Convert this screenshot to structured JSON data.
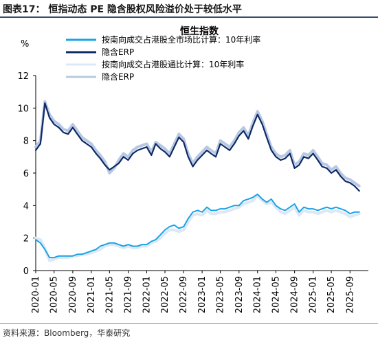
{
  "header": {
    "figure_title": "图表17：  恒指动态 PE 隐含股权风险溢价处于较低水平"
  },
  "footer": {
    "source": "资料来源：Bloomberg，华泰研究"
  },
  "chart_data": {
    "type": "line",
    "title": "恒生指数",
    "ylabel": "%",
    "ylim": [
      0,
      12
    ],
    "yticks": [
      0,
      2,
      4,
      6,
      8,
      10,
      12
    ],
    "xlim": [
      "2020-01-01",
      "2025-12-31"
    ],
    "xticks": [
      "2020-01",
      "2020-05",
      "2020-09",
      "2021-01",
      "2021-05",
      "2021-09",
      "2022-01",
      "2022-05",
      "2022-09",
      "2023-01",
      "2023-05",
      "2023-09",
      "2024-01",
      "2024-05",
      "2024-09",
      "2025-01",
      "2025-05",
      "2025-09"
    ],
    "legend_position": "top-left",
    "series": [
      {
        "name": "按南向成交占港股全市场比计算：10年利率",
        "color": "#1aa3e6",
        "x": [
          "2020-01-01",
          "2020-02-01",
          "2020-03-01",
          "2020-04-01",
          "2020-05-01",
          "2020-06-01",
          "2020-07-01",
          "2020-08-01",
          "2020-09-01",
          "2020-10-01",
          "2020-11-01",
          "2020-12-01",
          "2021-01-01",
          "2021-02-01",
          "2021-03-01",
          "2021-04-01",
          "2021-05-01",
          "2021-06-01",
          "2021-07-01",
          "2021-08-01",
          "2021-09-01",
          "2021-10-01",
          "2021-11-01",
          "2021-12-01",
          "2022-01-01",
          "2022-02-01",
          "2022-03-01",
          "2022-04-01",
          "2022-05-01",
          "2022-06-01",
          "2022-07-01",
          "2022-08-01",
          "2022-09-01",
          "2022-10-01",
          "2022-11-01",
          "2022-12-01",
          "2023-01-01",
          "2023-02-01",
          "2023-03-01",
          "2023-04-01",
          "2023-05-01",
          "2023-06-01",
          "2023-07-01",
          "2023-08-01",
          "2023-09-01",
          "2023-10-01",
          "2023-11-01",
          "2023-12-01",
          "2024-01-01",
          "2024-02-01",
          "2024-03-01",
          "2024-04-01",
          "2024-05-01",
          "2024-06-01",
          "2024-07-01",
          "2024-08-01",
          "2024-09-01",
          "2024-10-01",
          "2024-11-01",
          "2024-12-01",
          "2025-01-01",
          "2025-02-01",
          "2025-03-01",
          "2025-04-01",
          "2025-05-01",
          "2025-06-01",
          "2025-07-01",
          "2025-08-01",
          "2025-09-01",
          "2025-10-01",
          "2025-11-01"
        ],
        "values": [
          1.9,
          1.7,
          1.3,
          0.8,
          0.8,
          0.9,
          0.9,
          0.9,
          0.9,
          1.0,
          1.0,
          1.1,
          1.2,
          1.3,
          1.5,
          1.6,
          1.7,
          1.7,
          1.6,
          1.5,
          1.6,
          1.5,
          1.5,
          1.6,
          1.6,
          1.8,
          1.9,
          2.2,
          2.5,
          2.7,
          2.8,
          2.6,
          2.7,
          3.2,
          3.6,
          3.7,
          3.6,
          3.9,
          3.7,
          3.7,
          3.8,
          3.8,
          3.9,
          4.0,
          4.0,
          4.3,
          4.4,
          4.5,
          4.7,
          4.4,
          4.2,
          4.4,
          4.0,
          3.8,
          3.7,
          3.9,
          4.1,
          3.6,
          3.9,
          3.8,
          3.8,
          3.7,
          3.8,
          3.9,
          3.8,
          3.9,
          3.8,
          3.7,
          3.5,
          3.6,
          3.6
        ]
      },
      {
        "name": "隐含ERP",
        "color": "#0d2a66",
        "x": [
          "2020-01-01",
          "2020-02-01",
          "2020-03-01",
          "2020-04-01",
          "2020-05-01",
          "2020-06-01",
          "2020-07-01",
          "2020-08-01",
          "2020-09-01",
          "2020-10-01",
          "2020-11-01",
          "2020-12-01",
          "2021-01-01",
          "2021-02-01",
          "2021-03-01",
          "2021-04-01",
          "2021-05-01",
          "2021-06-01",
          "2021-07-01",
          "2021-08-01",
          "2021-09-01",
          "2021-10-01",
          "2021-11-01",
          "2021-12-01",
          "2022-01-01",
          "2022-02-01",
          "2022-03-01",
          "2022-04-01",
          "2022-05-01",
          "2022-06-01",
          "2022-07-01",
          "2022-08-01",
          "2022-09-01",
          "2022-10-01",
          "2022-11-01",
          "2022-12-01",
          "2023-01-01",
          "2023-02-01",
          "2023-03-01",
          "2023-04-01",
          "2023-05-01",
          "2023-06-01",
          "2023-07-01",
          "2023-08-01",
          "2023-09-01",
          "2023-10-01",
          "2023-11-01",
          "2023-12-01",
          "2024-01-01",
          "2024-02-01",
          "2024-03-01",
          "2024-04-01",
          "2024-05-01",
          "2024-06-01",
          "2024-07-01",
          "2024-08-01",
          "2024-09-01",
          "2024-10-01",
          "2024-11-01",
          "2024-12-01",
          "2025-01-01",
          "2025-02-01",
          "2025-03-01",
          "2025-04-01",
          "2025-05-01",
          "2025-06-01",
          "2025-07-01",
          "2025-08-01",
          "2025-09-01",
          "2025-10-01",
          "2025-11-01"
        ],
        "values": [
          7.4,
          7.8,
          10.3,
          9.4,
          9.0,
          8.8,
          8.5,
          8.4,
          8.8,
          8.4,
          8.0,
          7.8,
          7.6,
          7.2,
          6.9,
          6.5,
          6.2,
          6.4,
          6.6,
          7.0,
          6.8,
          7.2,
          7.4,
          7.5,
          7.6,
          7.1,
          7.8,
          7.5,
          7.3,
          7.0,
          7.6,
          8.2,
          7.9,
          7.0,
          6.4,
          6.8,
          7.1,
          7.4,
          7.2,
          7.0,
          7.8,
          7.6,
          7.4,
          7.8,
          8.3,
          8.6,
          8.1,
          8.9,
          9.6,
          9.0,
          8.2,
          7.4,
          7.0,
          6.8,
          6.9,
          7.2,
          6.3,
          6.5,
          7.0,
          6.9,
          7.2,
          6.8,
          6.4,
          6.3,
          6.0,
          6.2,
          5.8,
          5.5,
          5.4,
          5.2,
          4.9
        ]
      },
      {
        "name": "按南向成交占港股通比计算：10年利率",
        "color": "#dce8f6",
        "x": [
          "2020-01-01",
          "2020-02-01",
          "2020-03-01",
          "2020-04-01",
          "2020-05-01",
          "2020-06-01",
          "2020-07-01",
          "2020-08-01",
          "2020-09-01",
          "2020-10-01",
          "2020-11-01",
          "2020-12-01",
          "2021-01-01",
          "2021-02-01",
          "2021-03-01",
          "2021-04-01",
          "2021-05-01",
          "2021-06-01",
          "2021-07-01",
          "2021-08-01",
          "2021-09-01",
          "2021-10-01",
          "2021-11-01",
          "2021-12-01",
          "2022-01-01",
          "2022-02-01",
          "2022-03-01",
          "2022-04-01",
          "2022-05-01",
          "2022-06-01",
          "2022-07-01",
          "2022-08-01",
          "2022-09-01",
          "2022-10-01",
          "2022-11-01",
          "2022-12-01",
          "2023-01-01",
          "2023-02-01",
          "2023-03-01",
          "2023-04-01",
          "2023-05-01",
          "2023-06-01",
          "2023-07-01",
          "2023-08-01",
          "2023-09-01",
          "2023-10-01",
          "2023-11-01",
          "2023-12-01",
          "2024-01-01",
          "2024-02-01",
          "2024-03-01",
          "2024-04-01",
          "2024-05-01",
          "2024-06-01",
          "2024-07-01",
          "2024-08-01",
          "2024-09-01",
          "2024-10-01",
          "2024-11-01",
          "2024-12-01",
          "2025-01-01",
          "2025-02-01",
          "2025-03-01",
          "2025-04-01",
          "2025-05-01",
          "2025-06-01",
          "2025-07-01",
          "2025-08-01",
          "2025-09-01",
          "2025-10-01",
          "2025-11-01"
        ],
        "values": [
          2.0,
          1.9,
          1.4,
          0.6,
          0.7,
          0.8,
          0.8,
          0.8,
          0.9,
          0.9,
          1.0,
          1.0,
          1.1,
          1.2,
          1.3,
          1.5,
          1.6,
          1.6,
          1.5,
          1.4,
          1.5,
          1.4,
          1.4,
          1.5,
          1.5,
          1.7,
          1.8,
          2.0,
          2.3,
          2.5,
          2.5,
          2.4,
          2.5,
          3.0,
          3.4,
          3.5,
          3.4,
          3.7,
          3.5,
          3.5,
          3.6,
          3.6,
          3.7,
          3.8,
          3.9,
          4.1,
          4.2,
          4.3,
          4.6,
          4.3,
          4.1,
          4.2,
          3.9,
          3.6,
          3.5,
          3.7,
          3.9,
          3.4,
          3.7,
          3.6,
          3.6,
          3.5,
          3.6,
          3.7,
          3.6,
          3.7,
          3.6,
          3.5,
          3.3,
          3.4,
          3.5
        ]
      },
      {
        "name": "隐含ERP",
        "color": "#b8c8e3",
        "x": [
          "2020-01-01",
          "2020-02-01",
          "2020-03-01",
          "2020-04-01",
          "2020-05-01",
          "2020-06-01",
          "2020-07-01",
          "2020-08-01",
          "2020-09-01",
          "2020-10-01",
          "2020-11-01",
          "2020-12-01",
          "2021-01-01",
          "2021-02-01",
          "2021-03-01",
          "2021-04-01",
          "2021-05-01",
          "2021-06-01",
          "2021-07-01",
          "2021-08-01",
          "2021-09-01",
          "2021-10-01",
          "2021-11-01",
          "2021-12-01",
          "2022-01-01",
          "2022-02-01",
          "2022-03-01",
          "2022-04-01",
          "2022-05-01",
          "2022-06-01",
          "2022-07-01",
          "2022-08-01",
          "2022-09-01",
          "2022-10-01",
          "2022-11-01",
          "2022-12-01",
          "2023-01-01",
          "2023-02-01",
          "2023-03-01",
          "2023-04-01",
          "2023-05-01",
          "2023-06-01",
          "2023-07-01",
          "2023-08-01",
          "2023-09-01",
          "2023-10-01",
          "2023-11-01",
          "2023-12-01",
          "2024-01-01",
          "2024-02-01",
          "2024-03-01",
          "2024-04-01",
          "2024-05-01",
          "2024-06-01",
          "2024-07-01",
          "2024-08-01",
          "2024-09-01",
          "2024-10-01",
          "2024-11-01",
          "2024-12-01",
          "2025-01-01",
          "2025-02-01",
          "2025-03-01",
          "2025-04-01",
          "2025-05-01",
          "2025-06-01",
          "2025-07-01",
          "2025-08-01",
          "2025-09-01",
          "2025-10-01",
          "2025-11-01"
        ],
        "values": [
          7.6,
          8.0,
          10.4,
          9.6,
          9.2,
          9.0,
          8.7,
          8.6,
          9.0,
          8.6,
          8.2,
          8.0,
          7.8,
          7.4,
          7.1,
          6.7,
          6.0,
          6.3,
          6.8,
          7.2,
          7.0,
          7.4,
          7.6,
          7.7,
          7.8,
          7.3,
          7.9,
          7.7,
          7.5,
          7.2,
          7.8,
          8.4,
          8.1,
          7.2,
          6.6,
          7.0,
          7.3,
          7.6,
          7.4,
          7.2,
          8.0,
          7.8,
          7.6,
          8.0,
          8.5,
          8.8,
          8.3,
          9.1,
          9.8,
          9.2,
          8.4,
          7.6,
          7.2,
          7.0,
          7.1,
          7.4,
          6.5,
          6.7,
          7.2,
          7.1,
          7.4,
          7.0,
          6.6,
          6.5,
          6.2,
          6.4,
          6.0,
          5.7,
          5.6,
          5.4,
          5.2
        ]
      }
    ]
  }
}
